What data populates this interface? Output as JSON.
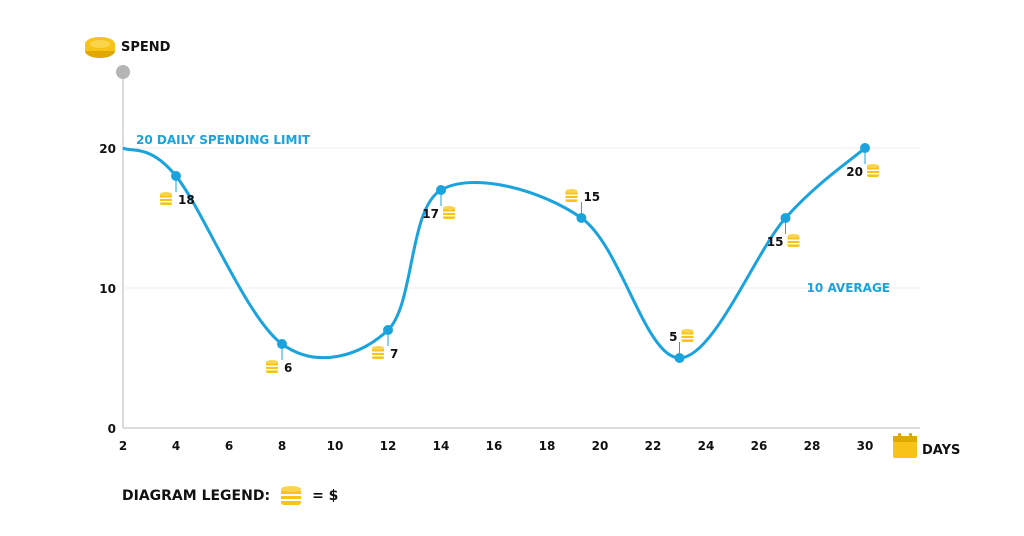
{
  "chart_data": {
    "type": "line",
    "y_label": "SPEND",
    "x_label": "DAYS",
    "xlim": [
      2,
      30
    ],
    "ylim": [
      0,
      20
    ],
    "x_ticks": [
      "2",
      "4",
      "6",
      "8",
      "10",
      "12",
      "14",
      "16",
      "18",
      "20",
      "22",
      "24",
      "26",
      "28",
      "30"
    ],
    "y_ticks": [
      "0",
      "10",
      "20"
    ],
    "grid": false,
    "series": [
      {
        "x": [
          4,
          8,
          12,
          14,
          19.3,
          23,
          27,
          30
        ],
        "y": [
          18,
          6,
          7,
          17,
          15,
          5,
          15,
          20
        ],
        "labels": [
          "18",
          "6",
          "7",
          "17",
          "15",
          "5",
          "15",
          "20"
        ]
      }
    ],
    "reference_lines": [
      {
        "y": 20,
        "label": "20 DAILY SPENDING LIMIT"
      },
      {
        "y": 10,
        "label": "10 AVERAGE"
      }
    ]
  },
  "legend": {
    "title": "DIAGRAM LEGEND:",
    "equals": "= $"
  },
  "colors": {
    "line": "#1aa3dd",
    "coin": "#f7c316",
    "axis": "#cfcfcf",
    "text": "#111111"
  },
  "icons": {
    "y_axis": "coin-stack-icon",
    "x_axis": "calendar-icon",
    "legend": "coin-stack-icon"
  }
}
